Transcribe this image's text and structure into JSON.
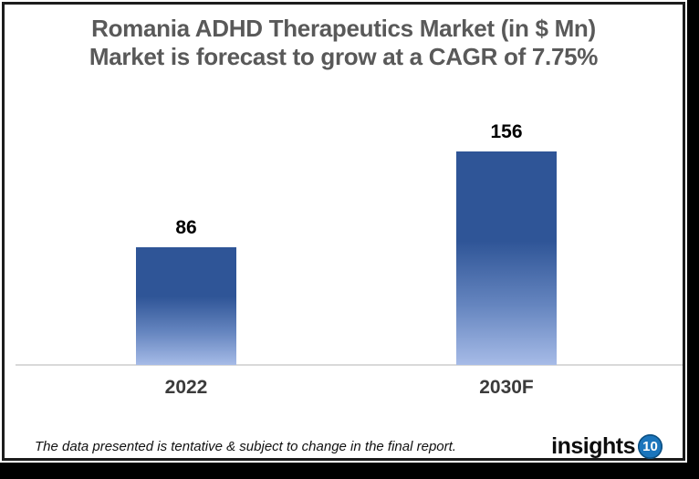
{
  "title": {
    "line1": "Romania ADHD Therapeutics Market (in $ Mn)",
    "line2": "Market is forecast to grow at a CAGR of 7.75%"
  },
  "chart_data": {
    "type": "bar",
    "categories": [
      "2022",
      "2030F"
    ],
    "values": [
      86,
      156
    ],
    "title": "Romania ADHD Therapeutics Market (in $ Mn)",
    "subtitle": "Market is forecast to grow at a CAGR of 7.75%",
    "xlabel": "",
    "ylabel": "",
    "ylim": [
      0,
      160
    ],
    "grid": false,
    "legend": false,
    "y_axis_visible": false,
    "data_labels_visible": true,
    "bar_gradient_top": "#2f5597",
    "bar_gradient_bottom": "#a6bbe7",
    "axis_line_color": "#d9d9d9"
  },
  "footer": {
    "disclaimer": "The data presented is tentative & subject to change in the final report.",
    "logo_text": "insights",
    "logo_badge": "10",
    "logo_badge_color": "#1b75bc"
  },
  "colors": {
    "title_text": "#595959",
    "value_label_text": "#000000",
    "category_label_text": "#3b3b3b",
    "frame_border": "#1c1c1c",
    "shadow_band": "#000000",
    "background": "#ffffff"
  }
}
